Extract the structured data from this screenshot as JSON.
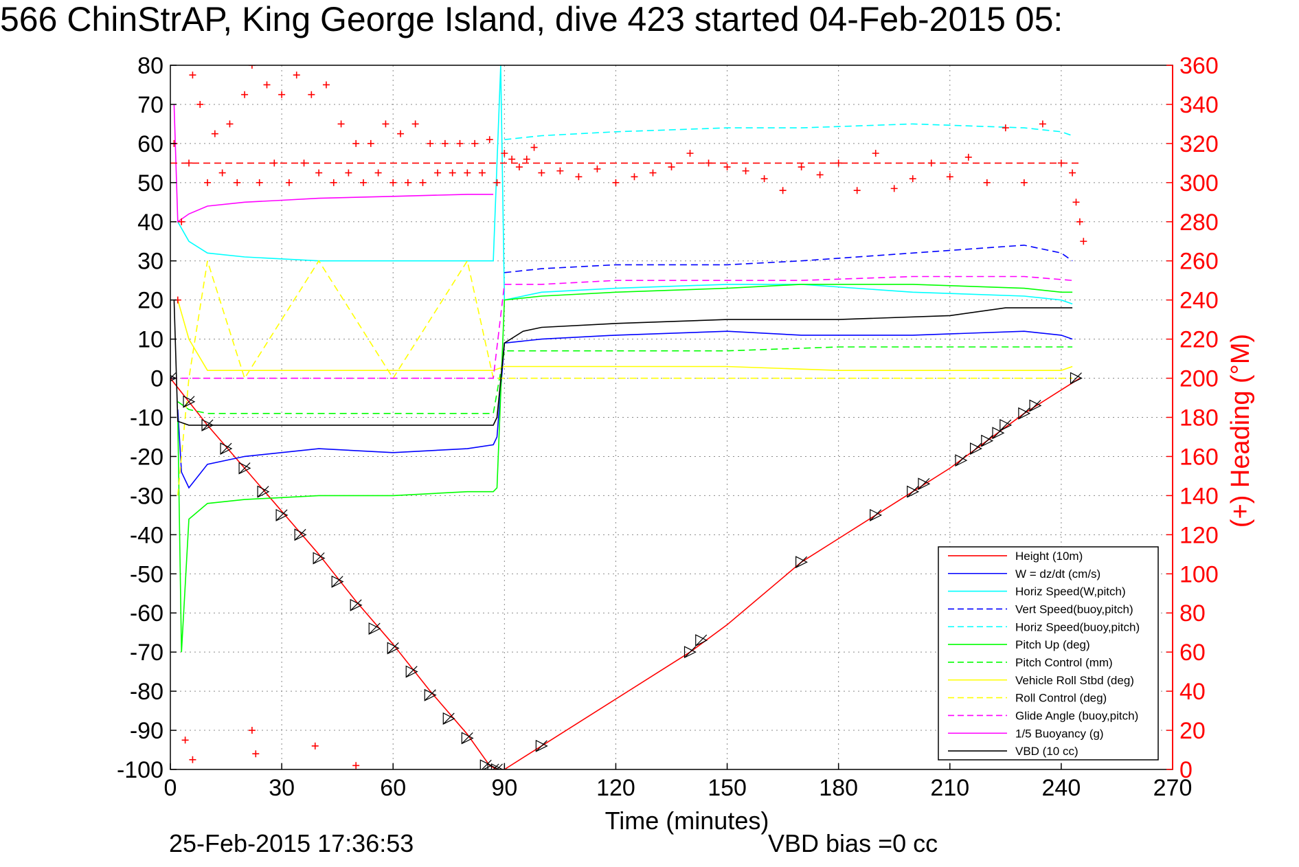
{
  "chart_data": {
    "type": "line",
    "title": "566 ChinStrAP, King George Island, dive 423 started 04-Feb-2015 05:",
    "xlabel": "Time (minutes)",
    "ylabel_right": "(+) Heading (°M)",
    "footer_date": "25-Feb-2015 17:36:53",
    "footer_note": "VBD bias =0 cc",
    "xlim": [
      0,
      270
    ],
    "ylim": [
      -100,
      80
    ],
    "ylim_right": [
      0,
      360
    ],
    "x_ticks": [
      0,
      30,
      60,
      90,
      120,
      150,
      180,
      210,
      240,
      270
    ],
    "x_tick_labels": [
      "0",
      "30",
      "60",
      "90",
      "120",
      "150",
      "180",
      "210",
      "240",
      "270"
    ],
    "y_ticks": [
      80,
      70,
      60,
      50,
      40,
      30,
      20,
      10,
      0,
      -10,
      -20,
      -30,
      -40,
      -50,
      -60,
      -70,
      -80,
      -90,
      -100
    ],
    "y_tick_labels": [
      "80",
      "70",
      "60",
      "50",
      "40",
      "30",
      "20",
      "10",
      "0",
      "-10",
      "-20",
      "-30",
      "-40",
      "-50",
      "-60",
      "-70",
      "-80",
      "-90",
      "-100"
    ],
    "y2_ticks": [
      360,
      340,
      320,
      300,
      280,
      260,
      240,
      220,
      200,
      180,
      160,
      140,
      120,
      100,
      80,
      60,
      40,
      20,
      0
    ],
    "y2_tick_labels": [
      "360",
      "340",
      "320",
      "300",
      "280",
      "260",
      "240",
      "220",
      "200",
      "180",
      "160",
      "140",
      "120",
      "100",
      "80",
      "60",
      "40",
      "20",
      "0"
    ],
    "grid": true,
    "legend_position": "bottom-right",
    "series": [
      {
        "name": "Height (10m)",
        "color": "#ff0000",
        "style": "solid",
        "x": [
          0,
          5,
          10,
          20,
          30,
          40,
          50,
          60,
          70,
          80,
          86,
          88,
          90,
          100,
          120,
          140,
          150,
          170,
          180,
          190,
          200,
          210,
          220,
          230,
          240,
          245
        ],
        "y": [
          0,
          -6,
          -12,
          -23,
          -34,
          -45,
          -57,
          -68,
          -80,
          -91,
          -99,
          -100,
          -100,
          -94,
          -82,
          -70,
          -63,
          -47,
          -41,
          -35,
          -29,
          -23,
          -16,
          -9,
          -3,
          0
        ]
      },
      {
        "name": "W = dz/dt (cm/s)",
        "color": "#0000ff",
        "style": "solid",
        "x": [
          2,
          3,
          5,
          10,
          20,
          40,
          60,
          80,
          87,
          88,
          90,
          100,
          120,
          150,
          170,
          200,
          230,
          240,
          243
        ],
        "y": [
          -8,
          -24,
          -28,
          -22,
          -20,
          -18,
          -19,
          -18,
          -17,
          -15,
          9,
          10,
          11,
          12,
          11,
          11,
          12,
          11,
          10
        ]
      },
      {
        "name": "Horiz Speed(W,pitch)",
        "color": "#00ffff",
        "style": "solid",
        "x": [
          2,
          5,
          10,
          20,
          40,
          60,
          80,
          87,
          89,
          90,
          100,
          120,
          150,
          170,
          200,
          230,
          240,
          243
        ],
        "y": [
          40,
          35,
          32,
          31,
          30,
          30,
          30,
          30,
          80,
          20,
          22,
          23,
          24,
          24,
          22,
          21,
          20,
          19
        ]
      },
      {
        "name": "Vert Speed(buoy,pitch)",
        "color": "#0000ff",
        "style": "dashed",
        "x": [
          90,
          100,
          120,
          150,
          170,
          200,
          230,
          240,
          243
        ],
        "y": [
          27,
          28,
          29,
          29,
          30,
          32,
          34,
          32,
          30
        ]
      },
      {
        "name": "Horiz Speed(buoy,pitch)",
        "color": "#00ffff",
        "style": "dashed",
        "x": [
          90,
          100,
          120,
          150,
          170,
          200,
          230,
          240,
          243
        ],
        "y": [
          61,
          62,
          63,
          64,
          64,
          65,
          64,
          63,
          62
        ]
      },
      {
        "name": "Pitch Up (deg)",
        "color": "#00ff00",
        "style": "solid",
        "x": [
          2,
          3,
          5,
          10,
          20,
          40,
          60,
          80,
          87,
          88,
          90,
          100,
          120,
          150,
          170,
          200,
          230,
          240,
          243
        ],
        "y": [
          -10,
          -70,
          -36,
          -32,
          -31,
          -30,
          -30,
          -29,
          -29,
          -28,
          20,
          21,
          22,
          23,
          24,
          24,
          23,
          22,
          22
        ]
      },
      {
        "name": "Pitch Control (mm)",
        "color": "#00ff00",
        "style": "dashed",
        "x": [
          2,
          5,
          10,
          40,
          87,
          90,
          120,
          150,
          180,
          210,
          243
        ],
        "y": [
          -6,
          -8,
          -9,
          -9,
          -9,
          7,
          7,
          7,
          8,
          8,
          8
        ]
      },
      {
        "name": "Vehicle Roll Stbd (deg)",
        "color": "#ffff00",
        "style": "solid",
        "x": [
          2,
          5,
          10,
          20,
          30,
          40,
          50,
          60,
          70,
          80,
          87,
          90,
          120,
          150,
          180,
          210,
          240,
          243
        ],
        "y": [
          20,
          10,
          2,
          2,
          2,
          2,
          2,
          2,
          2,
          2,
          2,
          3,
          3,
          3,
          2,
          2,
          2,
          3
        ]
      },
      {
        "name": "Roll Control (deg)",
        "color": "#ffff00",
        "style": "dashed",
        "x": [
          2,
          5,
          10,
          20,
          40,
          60,
          80,
          87,
          90,
          120,
          150,
          180,
          210,
          240,
          243
        ],
        "y": [
          -30,
          0,
          30,
          0,
          30,
          0,
          30,
          0,
          0,
          0,
          0,
          0,
          0,
          0,
          0
        ]
      },
      {
        "name": "Glide Angle (buoy,pitch)",
        "color": "#ff00ff",
        "style": "dashed",
        "x": [
          0,
          87,
          90,
          100,
          120,
          150,
          170,
          200,
          230,
          243
        ],
        "y": [
          0,
          0,
          24,
          24,
          25,
          25,
          25,
          26,
          26,
          25
        ]
      },
      {
        "name": "1/5 Buoyancy (g)",
        "color": "#ff00ff",
        "style": "solid",
        "x": [
          1,
          2,
          5,
          10,
          20,
          30,
          40,
          60,
          80,
          87
        ],
        "y": [
          70,
          40,
          42,
          44,
          45,
          45.5,
          46,
          46.5,
          47,
          47
        ]
      },
      {
        "name": "VBD (10 cc)",
        "color": "#000000",
        "style": "solid",
        "x": [
          1,
          2,
          5,
          20,
          60,
          87,
          88,
          90,
          95,
          100,
          120,
          150,
          180,
          210,
          225,
          240,
          243
        ],
        "y": [
          20,
          -11,
          -12,
          -12,
          -12,
          -12,
          -10,
          9,
          12,
          13,
          14,
          15,
          15,
          16,
          18,
          18,
          18
        ]
      },
      {
        "name": "Heading",
        "color": "#ff0000",
        "style": "markers",
        "axis": "right",
        "x": [
          1,
          2,
          3,
          5,
          6,
          8,
          10,
          12,
          14,
          16,
          18,
          20,
          22,
          24,
          26,
          28,
          30,
          32,
          34,
          36,
          38,
          40,
          42,
          44,
          46,
          48,
          50,
          52,
          54,
          56,
          58,
          60,
          62,
          64,
          66,
          68,
          70,
          72,
          74,
          76,
          78,
          80,
          82,
          84,
          86,
          88,
          90,
          92,
          94,
          96,
          98,
          100,
          105,
          110,
          115,
          120,
          125,
          130,
          135,
          140,
          145,
          150,
          155,
          160,
          165,
          170,
          175,
          180,
          185,
          190,
          195,
          200,
          205,
          210,
          215,
          220,
          225,
          230,
          235,
          240,
          243,
          244,
          245,
          246,
          4,
          6,
          22,
          23,
          39,
          50
        ],
        "y": [
          320,
          240,
          280,
          310,
          355,
          340,
          300,
          325,
          305,
          330,
          300,
          345,
          360,
          300,
          350,
          310,
          345,
          300,
          355,
          310,
          345,
          305,
          350,
          300,
          330,
          305,
          320,
          300,
          320,
          305,
          330,
          300,
          325,
          300,
          330,
          300,
          320,
          305,
          320,
          305,
          320,
          305,
          320,
          305,
          322,
          300,
          315,
          312,
          308,
          312,
          318,
          305,
          306,
          303,
          307,
          300,
          303,
          305,
          308,
          315,
          310,
          308,
          306,
          302,
          296,
          308,
          304,
          310,
          296,
          315,
          297,
          302,
          310,
          303,
          313,
          300,
          328,
          300,
          330,
          310,
          305,
          290,
          280,
          270,
          15,
          5,
          20,
          8,
          12,
          2
        ]
      },
      {
        "name": "Heading target",
        "color": "#ff0000",
        "style": "dashed",
        "axis": "right",
        "x": [
          0,
          245
        ],
        "y": [
          310,
          310
        ]
      },
      {
        "name": "Height markers",
        "color": "#000000",
        "style": "markers",
        "x": [
          0,
          5,
          10,
          15,
          20,
          25,
          30,
          35,
          40,
          45,
          50,
          55,
          60,
          65,
          70,
          75,
          80,
          85,
          87,
          88,
          100,
          140,
          143,
          170,
          190,
          200,
          203,
          213,
          217,
          220,
          223,
          225,
          230,
          233,
          244
        ],
        "y": [
          0,
          -6,
          -12,
          -18,
          -23,
          -29,
          -35,
          -40,
          -46,
          -52,
          -58,
          -64,
          -69,
          -75,
          -81,
          -87,
          -92,
          -99,
          -100,
          -100,
          -94,
          -70,
          -67,
          -47,
          -35,
          -29,
          -27,
          -21,
          -18,
          -16,
          -14,
          -12,
          -9,
          -7,
          0
        ]
      }
    ]
  }
}
